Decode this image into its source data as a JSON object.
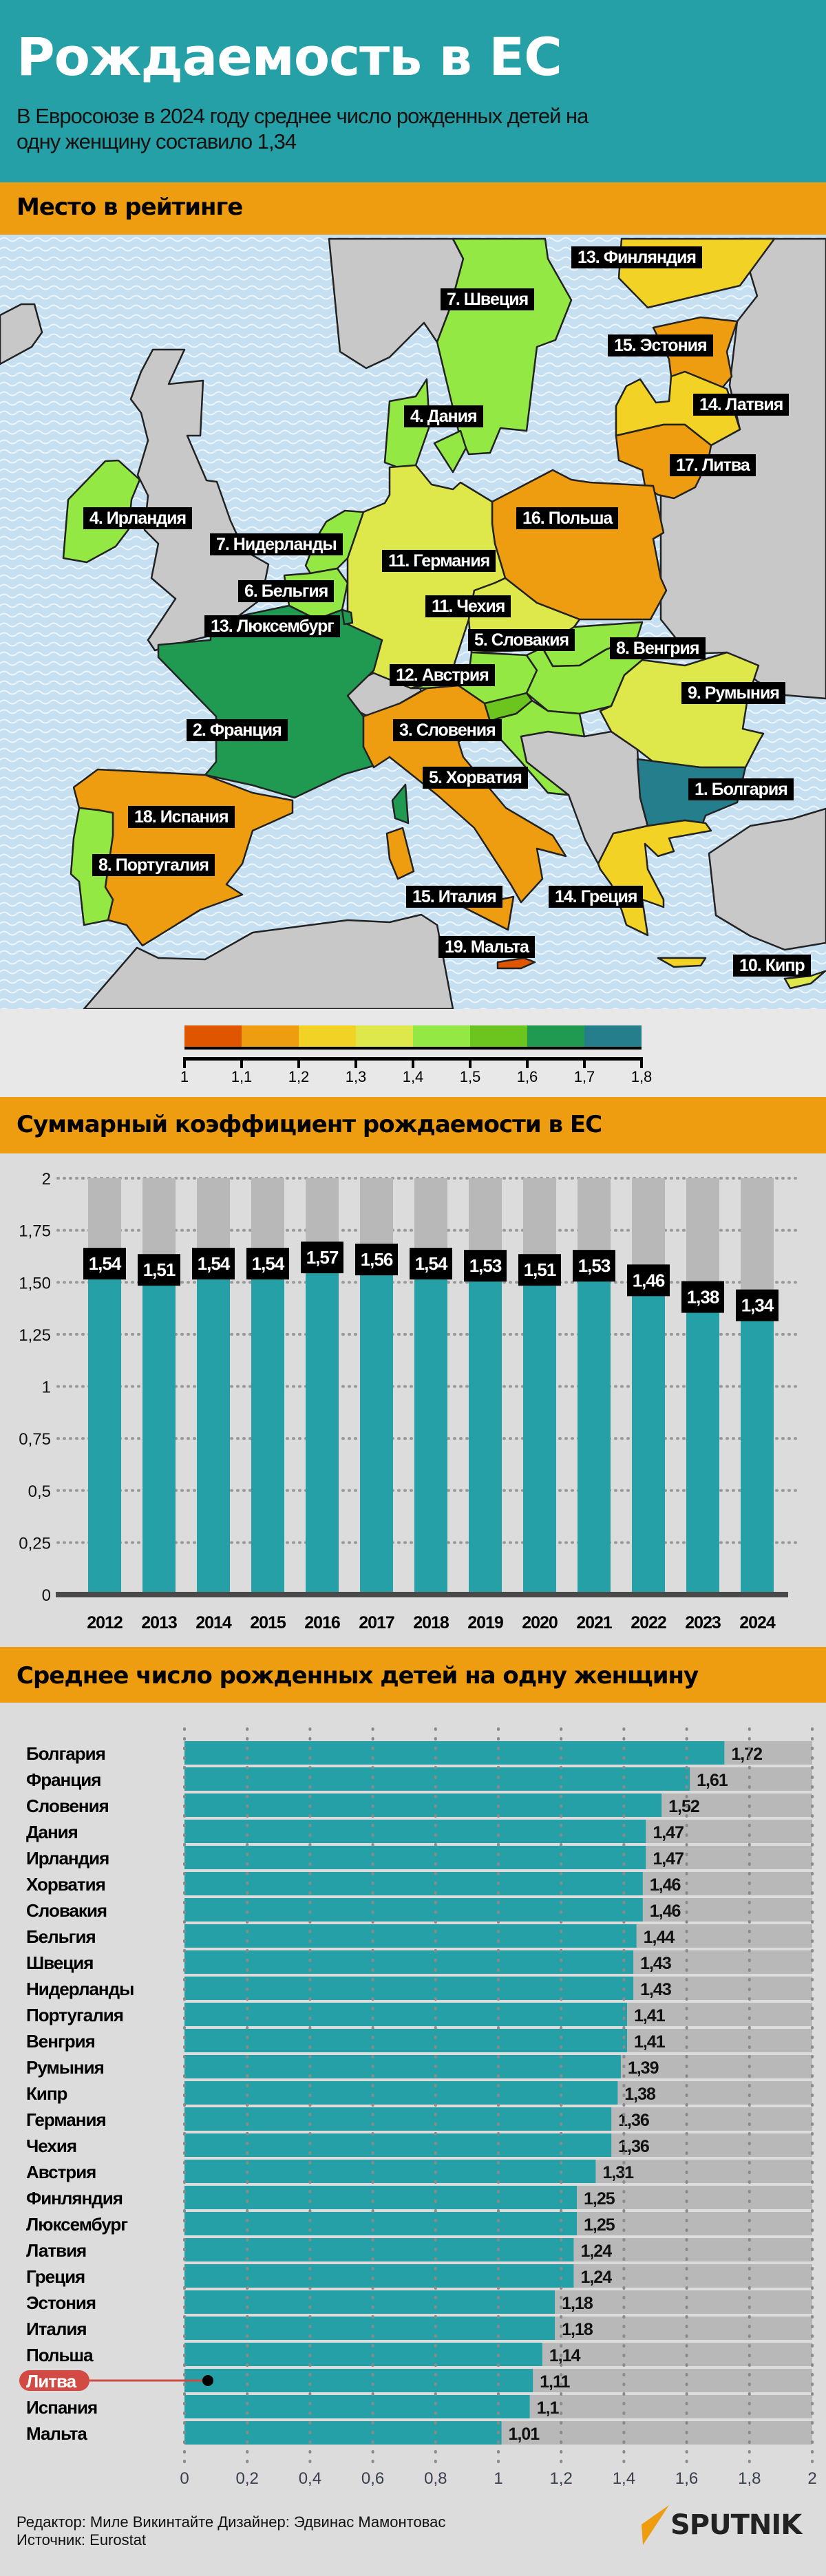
{
  "header": {
    "title": "Рождаемость в ЕС",
    "subtitle": "В Евросоюзе в 2024 году среднее число рожденных детей на одну женщину составило 1,34"
  },
  "sections": {
    "map_title": "Место в рейтинге",
    "chart1_title": "Суммарный коэффициент рождаемости в ЕС",
    "chart2_title": "Среднее число рожденных детей на одну женщину"
  },
  "map": {
    "water_color": "#c6e0f2",
    "other_land_color": "#c8c8c8",
    "labels": [
      {
        "text": "13. Финляндия",
        "country": "Финляндия"
      },
      {
        "text": "7. Швеция",
        "country": "Швеция"
      },
      {
        "text": "15. Эстония",
        "country": "Эстония"
      },
      {
        "text": "4. Дания",
        "country": "Дания"
      },
      {
        "text": "14. Латвия",
        "country": "Латвия"
      },
      {
        "text": "17. Литва",
        "country": "Литва"
      },
      {
        "text": "4. Ирландия",
        "country": "Ирландия"
      },
      {
        "text": "16. Польша",
        "country": "Польша"
      },
      {
        "text": "7. Нидерланды",
        "country": "Нидерланды"
      },
      {
        "text": "6. Бельгия",
        "country": "Бельгия"
      },
      {
        "text": "11. Германия",
        "country": "Германия"
      },
      {
        "text": "11. Чехия",
        "country": "Чехия"
      },
      {
        "text": "13. Люксембург",
        "country": "Люксембург"
      },
      {
        "text": "5. Словакия",
        "country": "Словакия"
      },
      {
        "text": "8. Венгрия",
        "country": "Венгрия"
      },
      {
        "text": "12. Австрия",
        "country": "Австрия"
      },
      {
        "text": "9. Румыния",
        "country": "Румыния"
      },
      {
        "text": "2. Франция",
        "country": "Франция"
      },
      {
        "text": "3. Словения",
        "country": "Словения"
      },
      {
        "text": "5. Хорватия",
        "country": "Хорватия"
      },
      {
        "text": "1. Болгария",
        "country": "Болгария"
      },
      {
        "text": "18. Испания",
        "country": "Испания"
      },
      {
        "text": "8. Португалия",
        "country": "Португалия"
      },
      {
        "text": "15. Италия",
        "country": "Италия"
      },
      {
        "text": "14. Греция",
        "country": "Греция"
      },
      {
        "text": "19. Мальта",
        "country": "Мальта"
      },
      {
        "text": "10. Кипр",
        "country": "Кипр"
      }
    ],
    "legend": {
      "ticks": [
        "1",
        "1,1",
        "1,2",
        "1,3",
        "1,4",
        "1,5",
        "1,6",
        "1,7",
        "1,8"
      ],
      "colors": [
        "#e05500",
        "#ee9c10",
        "#f2d225",
        "#dfe84a",
        "#93e843",
        "#6cc41e",
        "#1f9a50",
        "#247e8c"
      ]
    }
  },
  "chart_data": [
    {
      "type": "bar",
      "title": "Суммарный коэффициент рождаемости в ЕС",
      "categories": [
        "2012",
        "2013",
        "2014",
        "2015",
        "2016",
        "2017",
        "2018",
        "2019",
        "2020",
        "2021",
        "2022",
        "2023",
        "2024"
      ],
      "values": [
        1.54,
        1.51,
        1.54,
        1.54,
        1.57,
        1.56,
        1.54,
        1.53,
        1.51,
        1.53,
        1.46,
        1.38,
        1.34
      ],
      "value_labels": [
        "1,54",
        "1,51",
        "1,54",
        "1,54",
        "1,57",
        "1,56",
        "1,54",
        "1,53",
        "1,51",
        "1,53",
        "1,46",
        "1,38",
        "1,34"
      ],
      "ylim": [
        0,
        2
      ],
      "yticks": [
        "0",
        "0,25",
        "0,5",
        "0,75",
        "1",
        "1,25",
        "1,50",
        "1,75",
        "2"
      ],
      "grid": true,
      "colors": {
        "bar": "#25a0a6",
        "background_bar": "#b8b8b8"
      }
    },
    {
      "type": "bar",
      "orientation": "horizontal",
      "title": "Среднее число рожденных детей на одну женщину",
      "categories": [
        "Болгария",
        "Франция",
        "Словения",
        "Дания",
        "Ирландия",
        "Хорватия",
        "Словакия",
        "Бельгия",
        "Швеция",
        "Нидерланды",
        "Португалия",
        "Венгрия",
        "Румыния",
        "Кипр",
        "Германия",
        "Чехия",
        "Австрия",
        "Финляндия",
        "Люксембург",
        "Латвия",
        "Греция",
        "Эстония",
        "Италия",
        "Польша",
        "Литва",
        "Испания",
        "Мальта"
      ],
      "values": [
        1.72,
        1.61,
        1.52,
        1.47,
        1.47,
        1.46,
        1.46,
        1.44,
        1.43,
        1.43,
        1.41,
        1.41,
        1.39,
        1.38,
        1.36,
        1.36,
        1.31,
        1.25,
        1.25,
        1.24,
        1.24,
        1.18,
        1.18,
        1.14,
        1.11,
        1.1,
        1.01
      ],
      "value_labels": [
        "1,72",
        "1,61",
        "1,52",
        "1,47",
        "1,47",
        "1,46",
        "1,46",
        "1,44",
        "1,43",
        "1,43",
        "1,41",
        "1,41",
        "1,39",
        "1,38",
        "1,36",
        "1,36",
        "1,31",
        "1,25",
        "1,25",
        "1,24",
        "1,24",
        "1,18",
        "1,18",
        "1,14",
        "1,11",
        "1,1",
        "1,01"
      ],
      "highlight": "Литва",
      "highlight_color": "#d24a43",
      "xlim": [
        0,
        2
      ],
      "xticks": [
        "0",
        "0,2",
        "0,4",
        "0,6",
        "0,8",
        "1",
        "1,2",
        "1,4",
        "1,6",
        "1,8",
        "2"
      ],
      "grid": true,
      "colors": {
        "bar": "#25a0a6",
        "background_bar": "#b8b8b8"
      }
    }
  ],
  "footer": {
    "credits": "Редактор: Миле Викинтайте  Дизайнер: Эдвинас Мамонтовас",
    "source": "Источник: Eurostat",
    "logo": "SPUTNIK"
  }
}
